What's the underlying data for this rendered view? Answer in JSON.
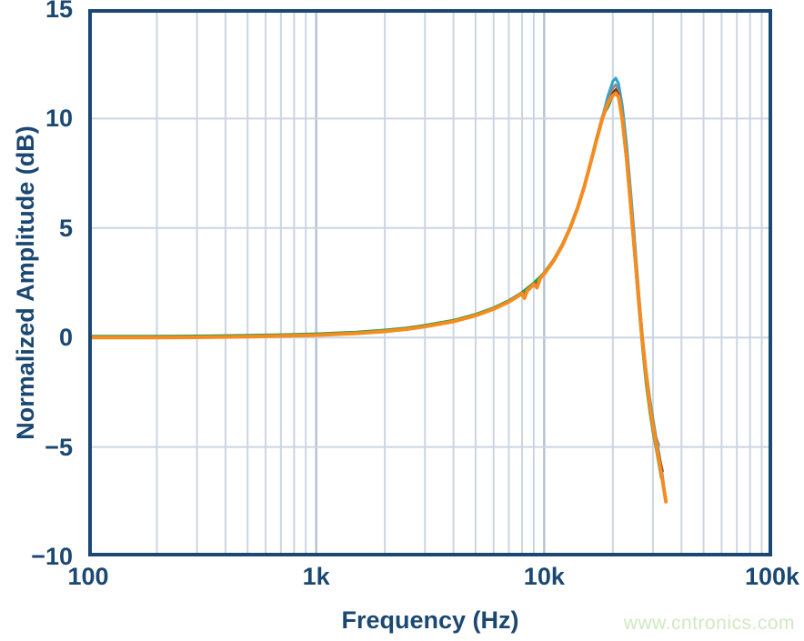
{
  "colors": {
    "axis": "#1b4872",
    "grid_minor": "#ccd5e1",
    "grid_major": "#b5c3d6",
    "background": "#ffffff",
    "watermark": "#cfe9c2"
  },
  "watermark": {
    "text": "www.cntronics.com"
  },
  "chart_data": {
    "type": "line",
    "title": "",
    "xlabel": "Frequency (Hz)",
    "ylabel": "Normalized Amplitude (dB)",
    "x_scale": "log",
    "xlim": [
      100,
      100000
    ],
    "ylim": [
      -10,
      15
    ],
    "grid": true,
    "legend": "none",
    "x_ticks": [
      {
        "v": 100,
        "label": "100"
      },
      {
        "v": 1000,
        "label": "1k"
      },
      {
        "v": 10000,
        "label": "10k"
      },
      {
        "v": 100000,
        "label": "100k"
      }
    ],
    "y_ticks": [
      {
        "v": 15,
        "label": "15"
      },
      {
        "v": 10,
        "label": "10"
      },
      {
        "v": 5,
        "label": "5"
      },
      {
        "v": 0,
        "label": "0"
      },
      {
        "v": -5,
        "label": "−5"
      },
      {
        "v": -10,
        "label": "−10"
      }
    ],
    "minor_x_gridlines": [
      200,
      300,
      400,
      500,
      600,
      700,
      800,
      900,
      2000,
      3000,
      4000,
      5000,
      6000,
      7000,
      8000,
      9000,
      20000,
      30000,
      40000,
      50000,
      60000,
      70000,
      80000,
      90000
    ],
    "major_x_gridlines": [
      1000,
      10000
    ],
    "series": [
      {
        "name": "trace-teal",
        "color": "#2ba7cc",
        "width": 3,
        "points": [
          [
            100,
            0
          ],
          [
            200,
            0
          ],
          [
            300,
            0.01
          ],
          [
            500,
            0.04
          ],
          [
            700,
            0.07
          ],
          [
            1000,
            0.11
          ],
          [
            1500,
            0.19
          ],
          [
            2000,
            0.28
          ],
          [
            2500,
            0.38
          ],
          [
            3000,
            0.5
          ],
          [
            4000,
            0.73
          ],
          [
            5000,
            1.0
          ],
          [
            6000,
            1.3
          ],
          [
            7000,
            1.63
          ],
          [
            8000,
            2.0
          ],
          [
            9000,
            2.43
          ],
          [
            10000,
            2.9
          ],
          [
            11000,
            3.5
          ],
          [
            12000,
            4.2
          ],
          [
            13000,
            5.0
          ],
          [
            14000,
            5.9
          ],
          [
            15000,
            6.9
          ],
          [
            16000,
            8.0
          ],
          [
            17000,
            9.1
          ],
          [
            18000,
            10.05
          ],
          [
            19000,
            11.0
          ],
          [
            20000,
            11.7
          ],
          [
            20600,
            11.85
          ],
          [
            21200,
            11.6
          ],
          [
            22000,
            10.6
          ],
          [
            23000,
            8.8
          ],
          [
            24000,
            6.6
          ],
          [
            25000,
            4.3
          ],
          [
            26000,
            2.0
          ],
          [
            27000,
            0.0
          ],
          [
            28000,
            -1.5
          ],
          [
            29000,
            -2.7
          ],
          [
            30000,
            -3.7
          ],
          [
            31000,
            -4.6
          ],
          [
            32000,
            -5.4
          ],
          [
            33000,
            -6.3
          ],
          [
            33600,
            -6.9
          ]
        ]
      },
      {
        "name": "trace-gray",
        "color": "#8a8c8f",
        "width": 3,
        "points": [
          [
            100,
            0
          ],
          [
            200,
            0
          ],
          [
            300,
            0.01
          ],
          [
            500,
            0.04
          ],
          [
            700,
            0.07
          ],
          [
            1000,
            0.11
          ],
          [
            1500,
            0.19
          ],
          [
            2000,
            0.28
          ],
          [
            2500,
            0.38
          ],
          [
            3000,
            0.5
          ],
          [
            4000,
            0.73
          ],
          [
            5000,
            1.0
          ],
          [
            6000,
            1.3
          ],
          [
            7000,
            1.63
          ],
          [
            8000,
            2.0
          ],
          [
            9000,
            2.43
          ],
          [
            10000,
            2.9
          ],
          [
            11000,
            3.5
          ],
          [
            12000,
            4.2
          ],
          [
            13000,
            5.0
          ],
          [
            14000,
            5.9
          ],
          [
            15000,
            6.9
          ],
          [
            16000,
            8.0
          ],
          [
            17000,
            9.1
          ],
          [
            18000,
            10.0
          ],
          [
            19000,
            10.75
          ],
          [
            20000,
            11.4
          ],
          [
            20600,
            11.55
          ],
          [
            21200,
            11.3
          ],
          [
            22000,
            10.2
          ],
          [
            23000,
            8.3
          ],
          [
            24000,
            6.1
          ],
          [
            25000,
            3.8
          ],
          [
            26000,
            1.6
          ],
          [
            27000,
            -0.4
          ],
          [
            28000,
            -1.9
          ],
          [
            29000,
            -3.1
          ],
          [
            30000,
            -4.0
          ],
          [
            31000,
            -4.6
          ],
          [
            31800,
            -4.9
          ]
        ]
      },
      {
        "name": "trace-maroon",
        "color": "#8e2f28",
        "width": 3,
        "points": [
          [
            100,
            0
          ],
          [
            200,
            0
          ],
          [
            300,
            0.01
          ],
          [
            500,
            0.04
          ],
          [
            700,
            0.07
          ],
          [
            1000,
            0.11
          ],
          [
            1500,
            0.19
          ],
          [
            2000,
            0.28
          ],
          [
            2500,
            0.38
          ],
          [
            3000,
            0.5
          ],
          [
            4000,
            0.73
          ],
          [
            5000,
            1.0
          ],
          [
            6000,
            1.3
          ],
          [
            7000,
            1.63
          ],
          [
            8000,
            2.0
          ],
          [
            9000,
            2.43
          ],
          [
            10000,
            2.9
          ],
          [
            11000,
            3.5
          ],
          [
            12000,
            4.2
          ],
          [
            13000,
            5.0
          ],
          [
            14000,
            5.9
          ],
          [
            15000,
            6.9
          ],
          [
            16000,
            8.0
          ],
          [
            17000,
            9.1
          ],
          [
            18000,
            10.0
          ],
          [
            19000,
            10.6
          ],
          [
            20000,
            11.15
          ],
          [
            20600,
            11.32
          ],
          [
            21200,
            11.1
          ],
          [
            22000,
            10.1
          ],
          [
            23000,
            8.2
          ],
          [
            24000,
            6.0
          ],
          [
            25000,
            3.7
          ],
          [
            26000,
            1.5
          ],
          [
            27000,
            -0.3
          ],
          [
            28000,
            -1.7
          ],
          [
            29000,
            -2.9
          ],
          [
            30000,
            -3.9
          ],
          [
            31000,
            -4.8
          ],
          [
            32000,
            -5.5
          ],
          [
            33000,
            -6.1
          ]
        ]
      },
      {
        "name": "trace-green",
        "color": "#2f9e48",
        "width": 3,
        "points": [
          [
            100,
            0.06
          ],
          [
            200,
            0.06
          ],
          [
            300,
            0.07
          ],
          [
            500,
            0.1
          ],
          [
            700,
            0.13
          ],
          [
            1000,
            0.17
          ],
          [
            1500,
            0.25
          ],
          [
            2000,
            0.34
          ],
          [
            2500,
            0.44
          ],
          [
            3000,
            0.56
          ],
          [
            4000,
            0.79
          ],
          [
            5000,
            1.06
          ],
          [
            6000,
            1.36
          ],
          [
            7000,
            1.69
          ],
          [
            8000,
            2.06
          ],
          [
            9000,
            2.49
          ],
          [
            10000,
            2.96
          ],
          [
            11000,
            3.56
          ],
          [
            12000,
            4.26
          ],
          [
            13000,
            5.06
          ],
          [
            14000,
            5.96
          ],
          [
            15000,
            6.95
          ],
          [
            16000,
            8.05
          ],
          [
            17000,
            9.15
          ],
          [
            18000,
            10.1
          ],
          [
            19000,
            10.5
          ],
          [
            20000,
            11.05
          ],
          [
            20600,
            11.2
          ],
          [
            21200,
            11.0
          ],
          [
            22000,
            9.9
          ],
          [
            23000,
            8.0
          ],
          [
            24000,
            5.8
          ],
          [
            25000,
            3.6
          ],
          [
            26000,
            1.4
          ],
          [
            27000,
            -0.5
          ],
          [
            28000,
            -2.1
          ],
          [
            29000,
            -3.3
          ],
          [
            30000,
            -4.3
          ],
          [
            31000,
            -5.1
          ],
          [
            32000,
            -5.9
          ],
          [
            32600,
            -6.4
          ]
        ]
      },
      {
        "name": "trace-orange",
        "color": "#f68b1f",
        "width": 4,
        "points": [
          [
            100,
            0
          ],
          [
            200,
            0
          ],
          [
            300,
            0.01
          ],
          [
            500,
            0.04
          ],
          [
            700,
            0.07
          ],
          [
            1000,
            0.11
          ],
          [
            1500,
            0.19
          ],
          [
            2000,
            0.28
          ],
          [
            2500,
            0.38
          ],
          [
            3000,
            0.5
          ],
          [
            4000,
            0.73
          ],
          [
            5000,
            1.0
          ],
          [
            6000,
            1.3
          ],
          [
            7000,
            1.63
          ],
          [
            8000,
            2.0
          ],
          [
            8200,
            1.8
          ],
          [
            8400,
            2.12
          ],
          [
            9000,
            2.43
          ],
          [
            9300,
            2.28
          ],
          [
            9600,
            2.7
          ],
          [
            10000,
            2.9
          ],
          [
            11000,
            3.5
          ],
          [
            12000,
            4.2
          ],
          [
            13000,
            5.0
          ],
          [
            14000,
            5.9
          ],
          [
            15000,
            6.9
          ],
          [
            16000,
            8.0
          ],
          [
            17000,
            9.05
          ],
          [
            18000,
            10.0
          ],
          [
            19000,
            10.7
          ],
          [
            20000,
            11.05
          ],
          [
            20600,
            11.15
          ],
          [
            21200,
            11.0
          ],
          [
            22000,
            10.0
          ],
          [
            23000,
            8.2
          ],
          [
            24000,
            6.0
          ],
          [
            25000,
            3.8
          ],
          [
            26000,
            1.7
          ],
          [
            27000,
            -0.2
          ],
          [
            28000,
            -1.7
          ],
          [
            29000,
            -3.0
          ],
          [
            30000,
            -4.0
          ],
          [
            31000,
            -4.9
          ],
          [
            32000,
            -5.7
          ],
          [
            33000,
            -6.5
          ],
          [
            33600,
            -7.0
          ],
          [
            34200,
            -7.5
          ]
        ]
      }
    ]
  }
}
